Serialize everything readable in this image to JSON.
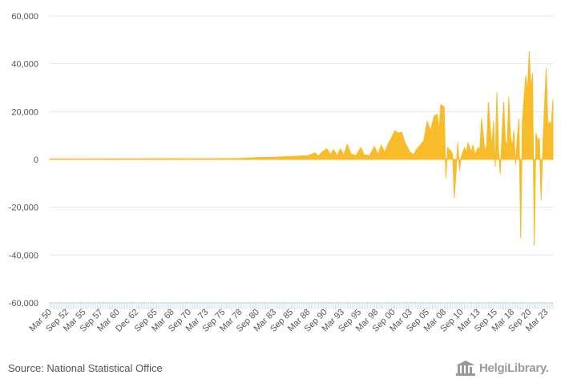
{
  "chart_data": {
    "type": "area",
    "title": "",
    "xlabel": "",
    "ylabel": "",
    "ylim": [
      -60000,
      60000
    ],
    "yticks": [
      60000,
      40000,
      20000,
      0,
      -20000,
      -40000,
      -60000
    ],
    "ytick_labels": [
      "60,000",
      "40,000",
      "20,000",
      "0",
      "-20,000",
      "-40,000",
      "-60,000"
    ],
    "x_start": "Mar 50",
    "x_end": "Mar 24",
    "x_step_months": 3,
    "xtick_labels": [
      "Mar 50",
      "Sep 52",
      "Mar 55",
      "Sep 57",
      "Mar 60",
      "Dec 62",
      "Sep 65",
      "Mar 68",
      "Sep 70",
      "Mar 73",
      "Sep 75",
      "Mar 78",
      "Sep 80",
      "Mar 83",
      "Sep 85",
      "Mar 88",
      "Sep 90",
      "Mar 93",
      "Sep 95",
      "Mar 98",
      "Sep 00",
      "Mar 03",
      "Sep 05",
      "Mar 08",
      "Sep 10",
      "Mar 13",
      "Sep 15",
      "Mar 18",
      "Sep 20",
      "Mar 23"
    ],
    "series": [
      {
        "name": "value",
        "color": "#f8bb2a",
        "points": [
          [
            "Mar 50",
            200
          ],
          [
            "Mar 60",
            250
          ],
          [
            "Mar 68",
            350
          ],
          [
            "Mar 73",
            300
          ],
          [
            "Mar 78",
            400
          ],
          [
            "Mar 80",
            700
          ],
          [
            "Mar 83",
            900
          ],
          [
            "Mar 85",
            1200
          ],
          [
            "Mar 88",
            1600
          ],
          [
            "Mar 89",
            2800
          ],
          [
            "Sep 89",
            1400
          ],
          [
            "Mar 90",
            3000
          ],
          [
            "Dec 90",
            4500
          ],
          [
            "Jun 91",
            2000
          ],
          [
            "Dec 91",
            4200
          ],
          [
            "Jun 92",
            1500
          ],
          [
            "Dec 92",
            4500
          ],
          [
            "Jun 93",
            1800
          ],
          [
            "Dec 93",
            6500
          ],
          [
            "Jun 94",
            2500
          ],
          [
            "Mar 95",
            1500
          ],
          [
            "Dec 95",
            5000
          ],
          [
            "Jun 96",
            2000
          ],
          [
            "Mar 97",
            1500
          ],
          [
            "Dec 97",
            5500
          ],
          [
            "Jun 98",
            2000
          ],
          [
            "Dec 98",
            6000
          ],
          [
            "Jun 99",
            3000
          ],
          [
            "Dec 99",
            6500
          ],
          [
            "Jun 00",
            9000
          ],
          [
            "Dec 00",
            12000
          ],
          [
            "Jun 01",
            11000
          ],
          [
            "Dec 01",
            11500
          ],
          [
            "Jun 02",
            7000
          ],
          [
            "Mar 03",
            3000
          ],
          [
            "Sep 03",
            2000
          ],
          [
            "Mar 04",
            4500
          ],
          [
            "Sep 04",
            6000
          ],
          [
            "Mar 05",
            8000
          ],
          [
            "Sep 05",
            16000
          ],
          [
            "Mar 06",
            12000
          ],
          [
            "Sep 06",
            18000
          ],
          [
            "Mar 07",
            19000
          ],
          [
            "Jun 07",
            12000
          ],
          [
            "Sep 07",
            23000
          ],
          [
            "Mar 08",
            22000
          ],
          [
            "Jun 08",
            -7500
          ],
          [
            "Sep 08",
            5000
          ],
          [
            "Mar 09",
            3500
          ],
          [
            "Jun 09",
            2000
          ],
          [
            "Sep 09",
            -16000
          ],
          [
            "Mar 10",
            7000
          ],
          [
            "Jun 10",
            -4500
          ],
          [
            "Sep 10",
            1000
          ],
          [
            "Mar 11",
            5000
          ],
          [
            "Jun 11",
            2500
          ],
          [
            "Sep 11",
            7000
          ],
          [
            "Mar 12",
            3000
          ],
          [
            "Jun 12",
            6000
          ],
          [
            "Sep 12",
            2000
          ],
          [
            "Mar 13",
            5000
          ],
          [
            "Jun 13",
            4000
          ],
          [
            "Sep 13",
            17000
          ],
          [
            "Mar 14",
            3000
          ],
          [
            "Jun 14",
            6000
          ],
          [
            "Sep 14",
            24000
          ],
          [
            "Mar 15",
            5000
          ],
          [
            "Jun 15",
            16000
          ],
          [
            "Sep 15",
            -3000
          ],
          [
            "Dec 15",
            28000
          ],
          [
            "Mar 16",
            4000
          ],
          [
            "Jun 16",
            -6000
          ],
          [
            "Sep 16",
            10000
          ],
          [
            "Dec 16",
            24000
          ],
          [
            "Mar 17",
            8000
          ],
          [
            "Jun 17",
            5000
          ],
          [
            "Sep 17",
            26000
          ],
          [
            "Dec 17",
            10000
          ],
          [
            "Mar 18",
            5000
          ],
          [
            "Jun 18",
            12000
          ],
          [
            "Sep 18",
            -2000
          ],
          [
            "Dec 18",
            9000
          ],
          [
            "Mar 19",
            17000
          ],
          [
            "Jun 19",
            -33000
          ],
          [
            "Sep 19",
            16000
          ],
          [
            "Mar 20",
            35000
          ],
          [
            "Jun 20",
            28000
          ],
          [
            "Sep 20",
            45000
          ],
          [
            "Dec 20",
            30000
          ],
          [
            "Mar 21",
            36000
          ],
          [
            "Jun 21",
            -36000
          ],
          [
            "Sep 21",
            11000
          ],
          [
            "Dec 21",
            8000
          ],
          [
            "Mar 22",
            9000
          ],
          [
            "Jun 22",
            -17000
          ],
          [
            "Sep 22",
            5000
          ],
          [
            "Dec 22",
            22000
          ],
          [
            "Mar 23",
            38000
          ],
          [
            "Jun 23",
            14000
          ],
          [
            "Sep 23",
            16000
          ],
          [
            "Dec 23",
            14000
          ],
          [
            "Mar 24",
            25000
          ]
        ]
      }
    ]
  },
  "footer": {
    "source": "Source: National Statistical Office",
    "brand": "HelgiLibrary."
  }
}
